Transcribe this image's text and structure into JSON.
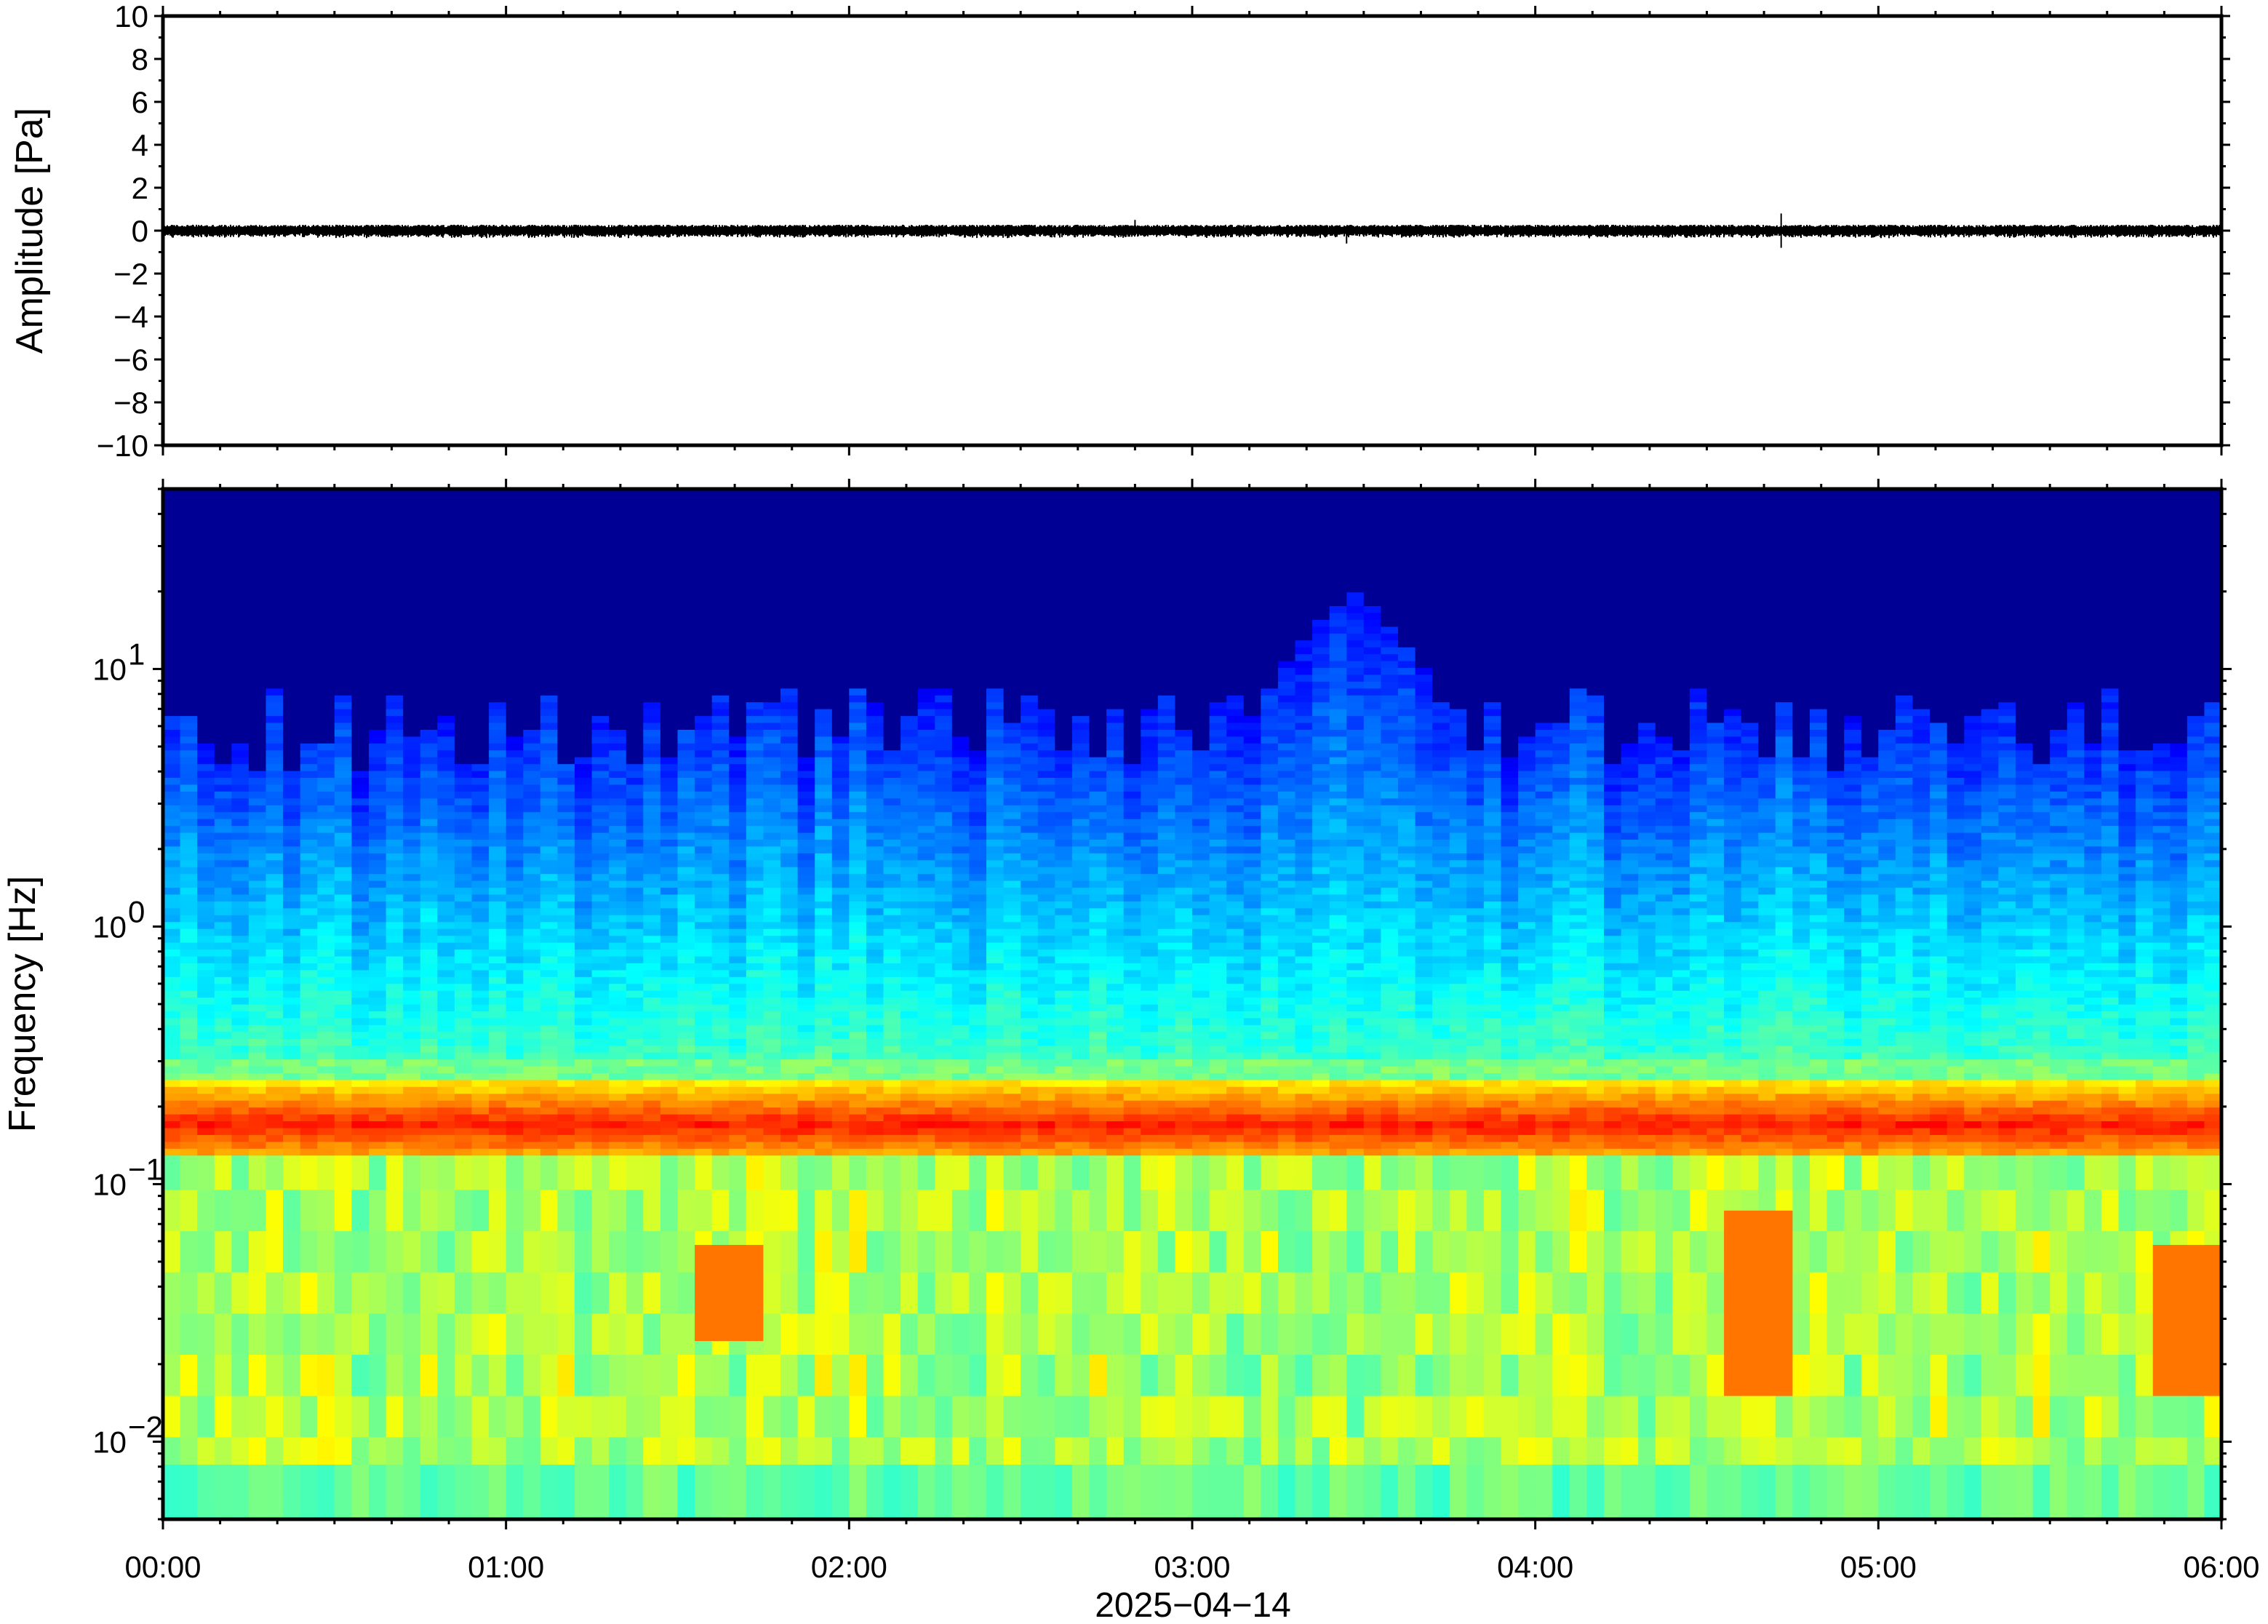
{
  "chart_data": [
    {
      "type": "line",
      "title": "",
      "xlabel": "",
      "ylabel": "Amplitude [Pa]",
      "ylim": [
        -10,
        10
      ],
      "yticks": [
        -10,
        -8,
        -6,
        -4,
        -2,
        0,
        2,
        4,
        6,
        8,
        10
      ],
      "ytick_labels": [
        "−10",
        "−8",
        "−6",
        "−4",
        "−2",
        "0",
        "2",
        "4",
        "6",
        "8",
        "10"
      ],
      "xlim": [
        "2025-04-14 00:00",
        "2025-04-14 06:00"
      ],
      "grid": false,
      "series": [
        {
          "baseline": 0.0,
          "typical_peak_amplitude": 0.25,
          "spikes": [
            {
              "time": "2025-04-14 02:50",
              "amplitude": 0.5
            },
            {
              "time": "2025-04-14 03:27",
              "amplitude": -0.6
            },
            {
              "time": "2025-04-14 04:43",
              "amplitude": 0.8
            },
            {
              "time": "2025-04-14 04:43",
              "amplitude": -0.8
            }
          ],
          "color": "#000000"
        }
      ]
    },
    {
      "type": "heatmap",
      "title": "",
      "xlabel": "",
      "ylabel": "Frequency [Hz]",
      "yscale": "log",
      "ylim": [
        0.005,
        50
      ],
      "yticks": [
        0.01,
        0.1,
        1,
        10
      ],
      "ytick_labels": [
        {
          "base": "10",
          "exp": "−2"
        },
        {
          "base": "10",
          "exp": "−1"
        },
        {
          "base": "10",
          "exp": "0"
        },
        {
          "base": "10",
          "exp": "1"
        }
      ],
      "xlim": [
        "2025-04-14 00:00",
        "2025-04-14 06:00"
      ],
      "colormap": "jet",
      "microseism_band_hz": [
        0.13,
        0.25
      ],
      "microseism_peak_hz": 0.17,
      "high_frequency_cutoff_hz": {
        "typical": 5,
        "max": 20,
        "max_time": "2025-04-14 03:28"
      },
      "notable_low_frequency_bursts": [
        {
          "time": "2025-04-14 04:40",
          "freq_range_hz": [
            0.015,
            0.08
          ]
        },
        {
          "time": "2025-04-14 05:55",
          "freq_range_hz": [
            0.015,
            0.06
          ]
        },
        {
          "time": "2025-04-14 01:40",
          "freq_range_hz": [
            0.025,
            0.06
          ]
        }
      ]
    }
  ],
  "xaxis": {
    "tick_labels": [
      "00:00",
      "01:00",
      "02:00",
      "03:00",
      "04:00",
      "05:00",
      "06:00"
    ],
    "date_label": "2025−04−14"
  },
  "colors": {
    "trace": "#000000",
    "frame": "#000000",
    "background": "#ffffff"
  }
}
